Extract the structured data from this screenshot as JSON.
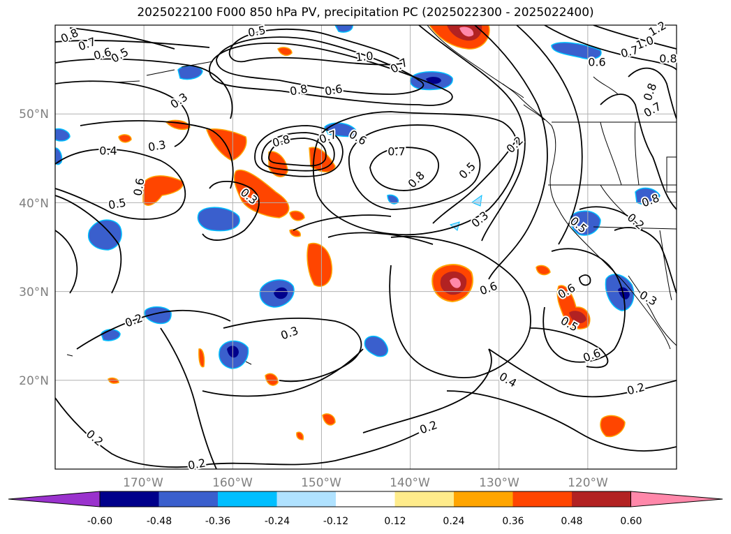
{
  "title": "2025022100 F000 850 hPa PV, precipitation PC (2025022300 - 2025022400)",
  "map": {
    "lon_ticks": [
      "170°W",
      "160°W",
      "150°W",
      "140°W",
      "130°W",
      "120°W"
    ],
    "lat_ticks": [
      "50°N",
      "40°N",
      "30°N",
      "20°N"
    ],
    "lon_range": [
      -180,
      -110
    ],
    "lat_range": [
      10,
      60
    ],
    "grid": true
  },
  "colorbar": {
    "ticks": [
      "-0.60",
      "-0.48",
      "-0.36",
      "-0.24",
      "-0.12",
      "0.12",
      "0.24",
      "0.36",
      "0.48",
      "0.60"
    ],
    "colors": [
      "#9a32cd",
      "#00008b",
      "#3a5fcd",
      "#00bfff",
      "#b0e2ff",
      "#ffffff",
      "#ffec8b",
      "#ffa500",
      "#ff4500",
      "#b22222",
      "#ff88aa"
    ],
    "extend": "both"
  },
  "pv_contour_labels": [
    "0.8",
    "0.7",
    "0.6",
    "0.5",
    "0.5",
    "1.0",
    "0.7",
    "0.8",
    "0.6",
    "0.3",
    "0.3",
    "0.4",
    "0.6",
    "0.5",
    "0.8",
    "0.7",
    "0.6",
    "0.7",
    "0.2",
    "0.5",
    "0.8",
    "0.3",
    "0.3",
    "0.2",
    "0.3",
    "0.6",
    "0.6",
    "0.5",
    "0.6",
    "0.4",
    "0.2",
    "0.2",
    "0.2",
    "0.2",
    "1.2",
    "1.0",
    "0.7",
    "0.8",
    "0.6",
    "0.8",
    "0.7",
    "0.5",
    "0.2",
    "0.8",
    "0.3"
  ]
}
